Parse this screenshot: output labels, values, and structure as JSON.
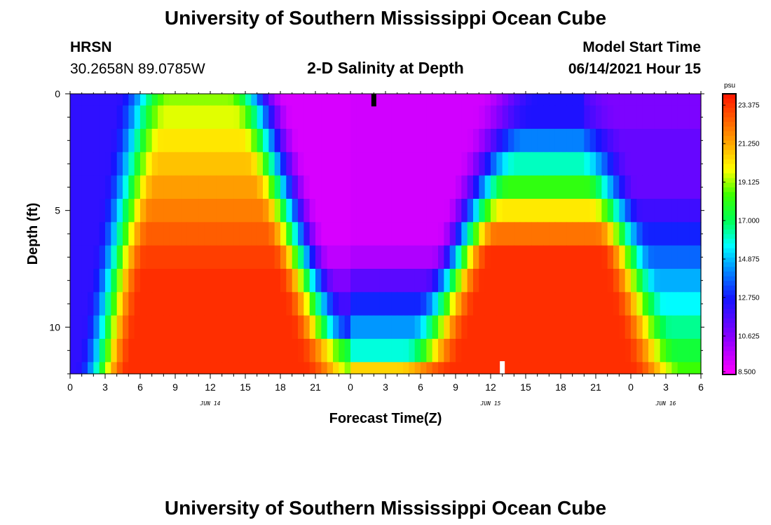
{
  "header": {
    "title_top": "University of Southern Mississippi Ocean Cube",
    "title_bottom": "University of Southern Mississippi Ocean Cube",
    "station": "HRSN",
    "coords": "30.2658N  89.0785W",
    "plot_title": "2-D Salinity at Depth",
    "model_label": "Model Start Time",
    "model_time": "06/14/2021 Hour 15"
  },
  "chart_data": {
    "type": "heatmap",
    "title": "2-D Salinity at Depth",
    "xlabel": "Forecast Time(Z)",
    "ylabel": "Depth (ft)",
    "x_start_hour": 0,
    "x_end_hour": 54,
    "x_ticks": [
      "0",
      "3",
      "6",
      "9",
      "12",
      "15",
      "18",
      "21",
      "0",
      "3",
      "6",
      "9",
      "12",
      "15",
      "18",
      "21",
      "0",
      "3",
      "6"
    ],
    "date_labels": [
      {
        "text": "JUN 14",
        "hour": 12
      },
      {
        "text": "JUN 15",
        "hour": 36
      },
      {
        "text": "JUN 16",
        "hour": 51
      }
    ],
    "y_range": [
      0,
      12
    ],
    "y_ticks": [
      "0",
      "5",
      "10"
    ],
    "y_tick_values": [
      0,
      5,
      10
    ],
    "colorbar": {
      "unit": "psu",
      "min": 8.5,
      "max": 24.0,
      "labels": [
        "23.375",
        "21.250",
        "19.125",
        "17.000",
        "14.875",
        "12.750",
        "10.625",
        "8.500"
      ]
    },
    "layers_depth_ft": [
      0,
      1,
      2,
      3,
      4,
      5,
      6,
      7,
      8,
      9,
      10,
      11,
      12
    ],
    "salinity_series": [
      {
        "name": "ramp-1 (rise, depth-dependent start hour)",
        "low": 12.0,
        "high": 23.5,
        "start_surface_hr": 4.0,
        "start_bottom_hr": 0.5,
        "width_hr": 4.5
      },
      {
        "name": "fall-1 (drop, depth-dependent hour)",
        "low": 9.0,
        "high": 23.5,
        "start_surface_hr": 13.5,
        "start_bottom_hr": 20.0,
        "width_hr": 5.0
      },
      {
        "name": "rise-2",
        "low": 9.0,
        "high": 23.5,
        "start_surface_hr": 35.0,
        "start_bottom_hr": 28.0,
        "width_hr": 5.0
      },
      {
        "name": "fall-2",
        "low": 12.0,
        "high": 23.5,
        "start_surface_hr": 42.0,
        "start_bottom_hr": 48.0,
        "width_hr": 4.5
      }
    ],
    "markers": [
      {
        "name": "black marker",
        "hour": 26,
        "depth_ft": 0.3,
        "color": "#000000"
      },
      {
        "name": "white marker",
        "hour": 37,
        "depth_ft": 11.7,
        "color": "#ffffff"
      }
    ]
  }
}
